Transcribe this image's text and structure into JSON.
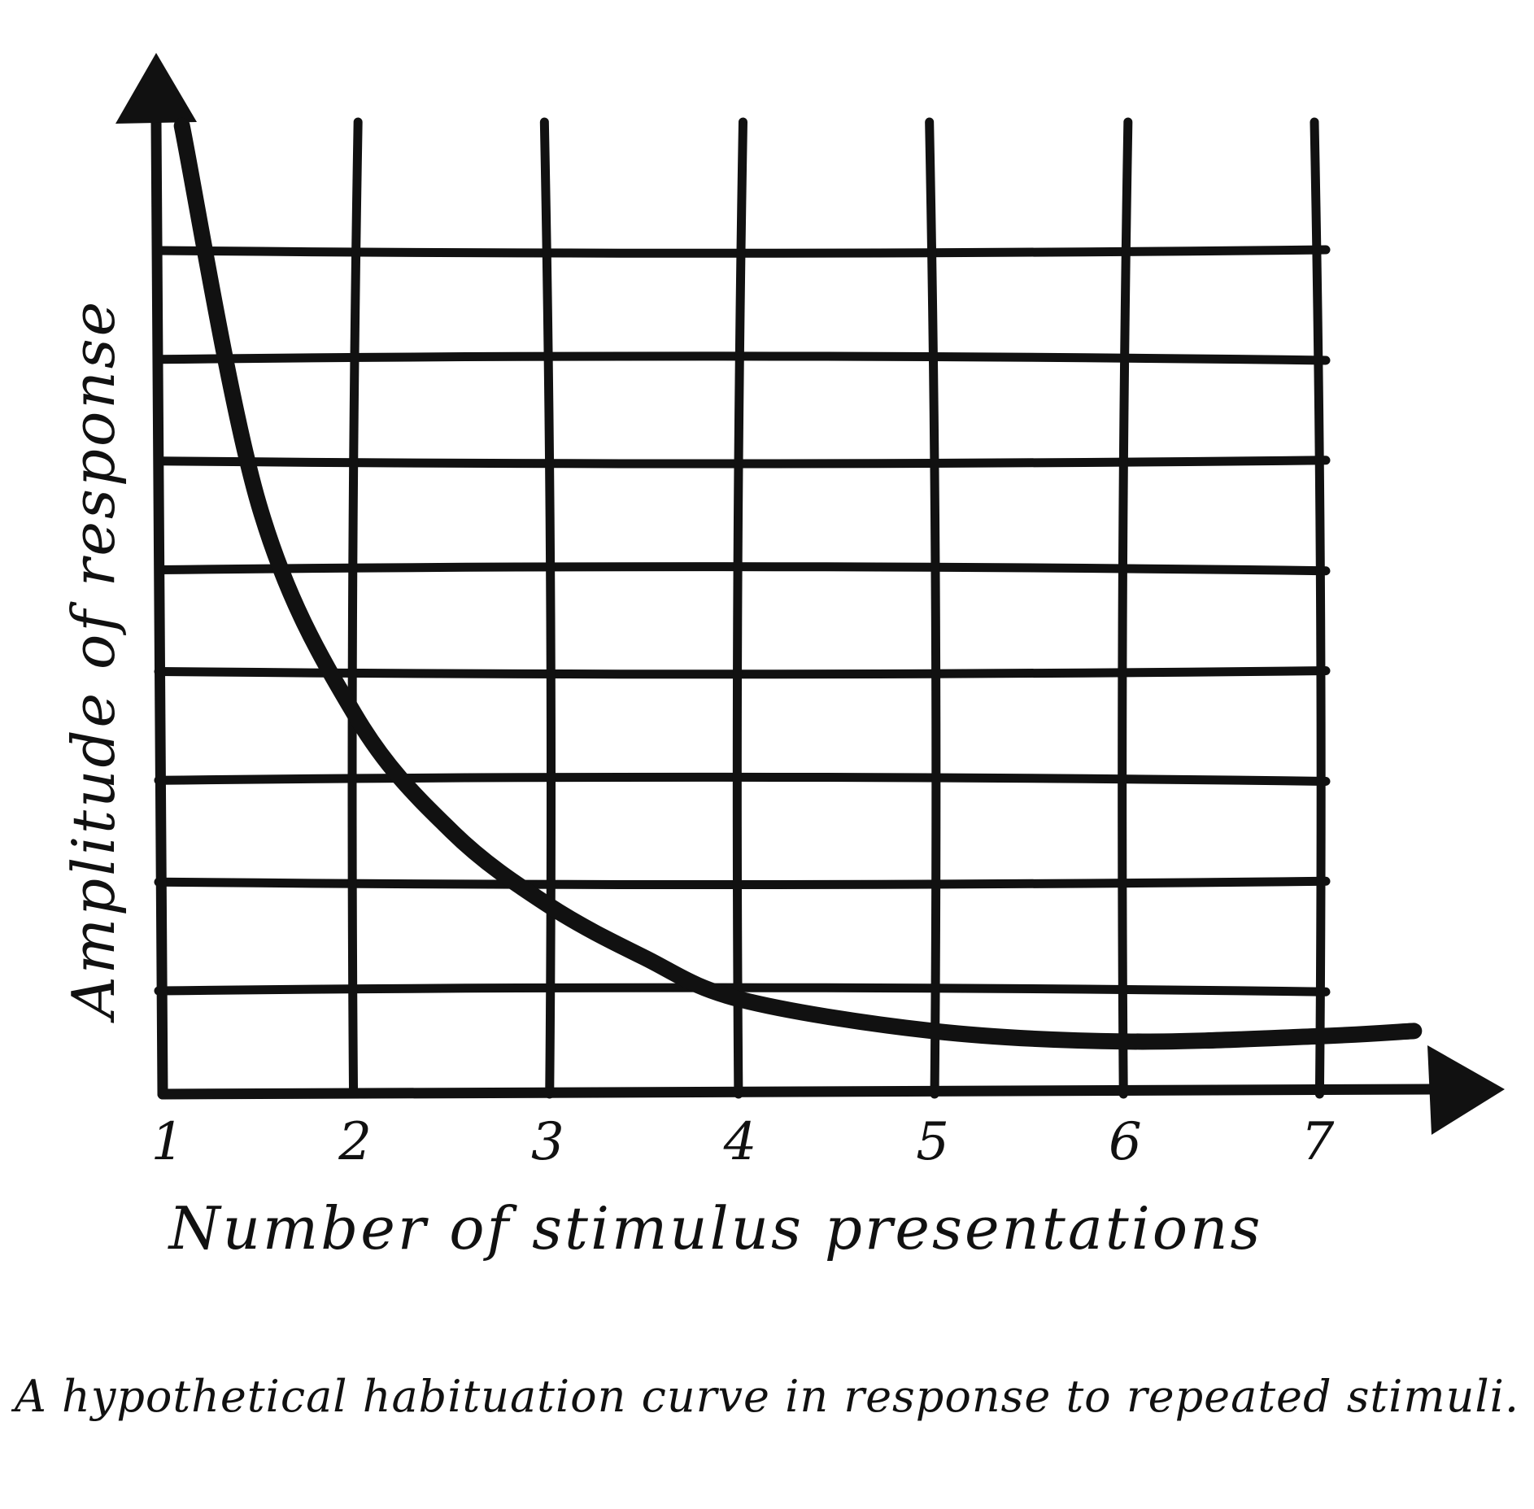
{
  "caption": "A hypothetical habituation curve in response to repeated stimuli.",
  "colors": {
    "ink": "#111111",
    "background": "#ffffff"
  },
  "chart_data": {
    "type": "line",
    "title": "",
    "xlabel": "Number of stimulus presentations",
    "ylabel": "Amplitude of response",
    "x_ticks": [
      "1",
      "2",
      "3",
      "4",
      "5",
      "6",
      "7"
    ],
    "xlim": [
      1,
      7.6
    ],
    "ylim": [
      0,
      9
    ],
    "grid": true,
    "grid_rows": 8,
    "y_ticks_labeled": false,
    "legend": "none",
    "series": [
      {
        "x": [
          1.1,
          1.5,
          2,
          2.5,
          3,
          3.5,
          4,
          5,
          6,
          7,
          7.5
        ],
        "y": [
          9.2,
          5.6,
          3.6,
          2.5,
          1.8,
          1.3,
          0.9,
          0.6,
          0.5,
          0.55,
          0.6
        ]
      }
    ]
  }
}
